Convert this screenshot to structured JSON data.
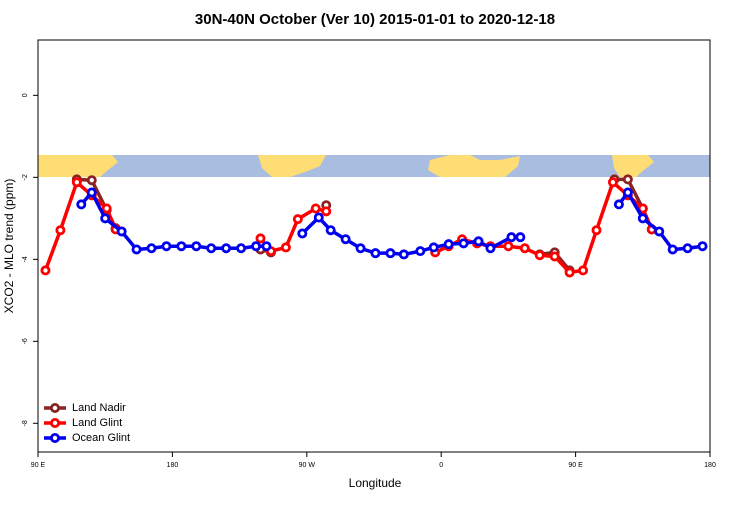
{
  "chart_data": {
    "type": "line",
    "title": "30N-40N October (Ver 10)   2015-01-01 to 2020-12-18",
    "x_label": "Longitude",
    "y_label": "XCO2 - MLO trend (ppm)",
    "xlim": [
      90,
      540
    ],
    "xticks": [
      {
        "value": 90,
        "label": "90 E"
      },
      {
        "value": 180,
        "label": "180"
      },
      {
        "value": 270,
        "label": "90 W"
      },
      {
        "value": 360,
        "label": "0"
      },
      {
        "value": 450,
        "label": "90 E"
      },
      {
        "value": 540,
        "label": "180"
      }
    ],
    "ylim": [
      -8.7,
      1.35
    ],
    "yticks": [
      0,
      -2,
      -4,
      -6,
      -8
    ],
    "legend": "bottom-left",
    "series": [
      {
        "name": "Land Nadir",
        "color": "#8b2323",
        "x": [
          116,
          126,
          136,
          142,
          null,
          239,
          246,
          null,
          283,
          null,
          426,
          436,
          446,
          null,
          476,
          485,
          495,
          501
        ],
        "values": [
          -2.05,
          -2.07,
          -2.8,
          -3.24,
          null,
          -3.76,
          -3.83,
          null,
          -2.68,
          null,
          -3.88,
          -3.83,
          -4.27,
          null,
          -2.05,
          -2.05,
          -2.76,
          -3.27
        ]
      },
      {
        "name": "Land Glint",
        "color": "#ff0000",
        "x": [
          95,
          105,
          116,
          126,
          136,
          142,
          null,
          239,
          246,
          256,
          264,
          276,
          283,
          null,
          356,
          365,
          374,
          384,
          393,
          405,
          416,
          426,
          436,
          446,
          455,
          464,
          475,
          485,
          495,
          501
        ],
        "values": [
          -4.27,
          -3.29,
          -2.12,
          -2.44,
          -2.76,
          -3.27,
          null,
          -3.49,
          -3.8,
          -3.71,
          -3.02,
          -2.76,
          -2.83,
          null,
          -3.83,
          -3.68,
          -3.51,
          -3.61,
          -3.68,
          -3.68,
          -3.73,
          -3.9,
          -3.93,
          -4.32,
          -4.27,
          -3.29,
          -2.12,
          -2.44,
          -2.76,
          -3.27
        ]
      },
      {
        "name": "Ocean Glint",
        "color": "#0000ee",
        "x": [
          119,
          126,
          135,
          146,
          156,
          166,
          176,
          186,
          196,
          206,
          216,
          226,
          236,
          243,
          null,
          267,
          278,
          286,
          296,
          306,
          316,
          326,
          335,
          346,
          355,
          365,
          375,
          385,
          393,
          407,
          413,
          null,
          479,
          485,
          495,
          506,
          515,
          525,
          535
        ],
        "values": [
          -2.66,
          -2.37,
          -3.0,
          -3.32,
          -3.76,
          -3.73,
          -3.68,
          -3.68,
          -3.68,
          -3.73,
          -3.73,
          -3.73,
          -3.68,
          -3.68,
          null,
          -3.37,
          -2.98,
          -3.29,
          -3.51,
          -3.73,
          -3.85,
          -3.85,
          -3.88,
          -3.8,
          -3.71,
          -3.63,
          -3.61,
          -3.56,
          -3.73,
          -3.46,
          -3.46,
          null,
          -2.66,
          -2.37,
          -3.0,
          -3.32,
          -3.76,
          -3.73,
          -3.68
        ]
      }
    ]
  }
}
